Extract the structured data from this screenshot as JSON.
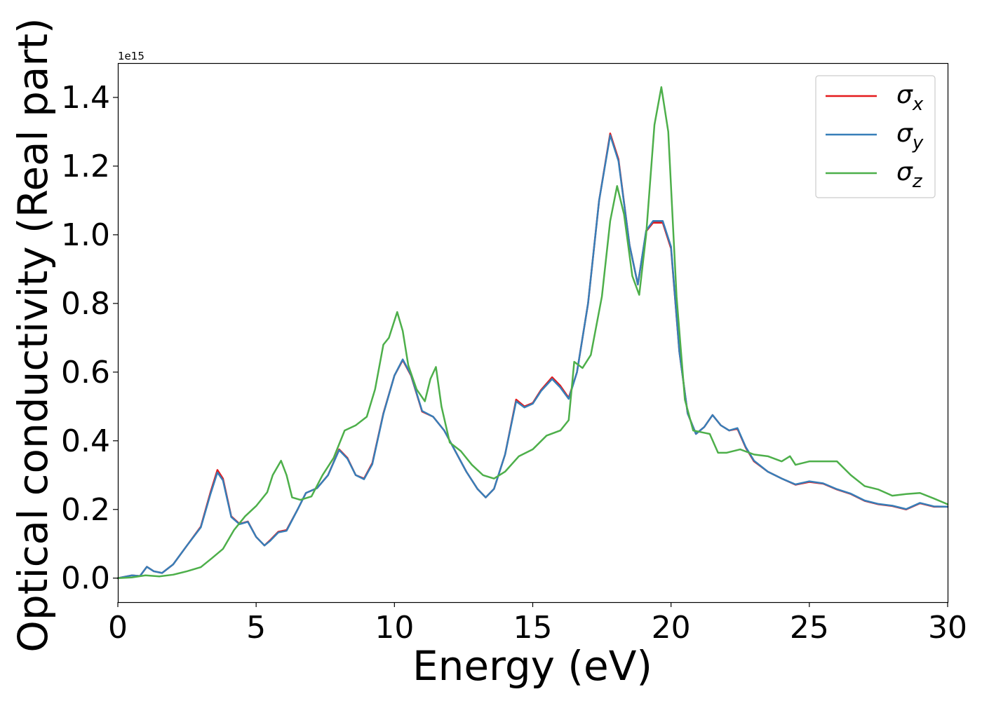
{
  "chart_data": {
    "type": "line",
    "xlabel": "Energy (eV)",
    "ylabel": "Optical conductivity (Real part)",
    "offset_text": "1e15",
    "xlim": [
      0,
      30
    ],
    "ylim": [
      -0.07,
      1.5
    ],
    "y_scale_factor": "1e15",
    "x_ticks": [
      0,
      5,
      10,
      15,
      20,
      25,
      30
    ],
    "x_tick_labels": [
      "0",
      "5",
      "10",
      "15",
      "20",
      "25",
      "30"
    ],
    "y_ticks": [
      0.0,
      0.2,
      0.4,
      0.6,
      0.8,
      1.0,
      1.2,
      1.4
    ],
    "y_tick_labels": [
      "0.0",
      "0.2",
      "0.4",
      "0.6",
      "0.8",
      "1.0",
      "1.2",
      "1.4"
    ],
    "grid": false,
    "legend_position": "top-right",
    "series": [
      {
        "name": "σx",
        "label_base": "σ",
        "label_sub": "x",
        "color": "#e41a1c",
        "x": [
          0,
          0.5,
          0.8,
          1.05,
          1.3,
          1.6,
          2.0,
          2.5,
          3.0,
          3.35,
          3.6,
          3.8,
          4.1,
          4.4,
          4.7,
          5.0,
          5.3,
          5.5,
          5.8,
          6.1,
          6.5,
          6.8,
          7.2,
          7.6,
          8.0,
          8.3,
          8.6,
          8.9,
          9.2,
          9.6,
          10.0,
          10.3,
          10.6,
          11.0,
          11.4,
          11.8,
          12.2,
          12.6,
          13.0,
          13.3,
          13.6,
          14.0,
          14.4,
          14.7,
          15.0,
          15.3,
          15.7,
          16.0,
          16.3,
          16.6,
          17.0,
          17.4,
          17.8,
          18.1,
          18.5,
          18.8,
          19.1,
          19.35,
          19.7,
          20.0,
          20.3,
          20.6,
          20.9,
          21.2,
          21.5,
          21.8,
          22.1,
          22.4,
          22.7,
          23.0,
          23.5,
          24.0,
          24.5,
          25.0,
          25.5,
          26.0,
          26.5,
          27.0,
          27.5,
          28.0,
          28.5,
          29.0,
          29.5,
          30.0
        ],
        "values": [
          0,
          0.008,
          0.006,
          0.033,
          0.02,
          0.015,
          0.04,
          0.095,
          0.15,
          0.25,
          0.315,
          0.29,
          0.18,
          0.158,
          0.165,
          0.12,
          0.095,
          0.11,
          0.135,
          0.14,
          0.2,
          0.248,
          0.262,
          0.3,
          0.375,
          0.35,
          0.3,
          0.29,
          0.335,
          0.48,
          0.59,
          0.635,
          0.59,
          0.485,
          0.47,
          0.43,
          0.37,
          0.31,
          0.26,
          0.235,
          0.26,
          0.36,
          0.52,
          0.5,
          0.51,
          0.548,
          0.585,
          0.56,
          0.525,
          0.6,
          0.8,
          1.1,
          1.295,
          1.22,
          0.97,
          0.855,
          1.01,
          1.035,
          1.035,
          0.96,
          0.66,
          0.48,
          0.42,
          0.44,
          0.475,
          0.445,
          0.43,
          0.435,
          0.38,
          0.34,
          0.31,
          0.29,
          0.272,
          0.28,
          0.275,
          0.258,
          0.245,
          0.225,
          0.215,
          0.21,
          0.2,
          0.218,
          0.208,
          0.208
        ]
      },
      {
        "name": "σy",
        "label_base": "σ",
        "label_sub": "y",
        "color": "#377eb8",
        "x": [
          0,
          0.5,
          0.8,
          1.05,
          1.3,
          1.6,
          2.0,
          2.5,
          3.0,
          3.35,
          3.6,
          3.8,
          4.1,
          4.4,
          4.7,
          5.0,
          5.3,
          5.5,
          5.8,
          6.1,
          6.5,
          6.8,
          7.2,
          7.6,
          8.0,
          8.3,
          8.6,
          8.9,
          9.2,
          9.6,
          10.0,
          10.3,
          10.6,
          11.0,
          11.4,
          11.8,
          12.2,
          12.6,
          13.0,
          13.3,
          13.6,
          14.0,
          14.4,
          14.7,
          15.0,
          15.3,
          15.7,
          16.0,
          16.3,
          16.6,
          17.0,
          17.4,
          17.8,
          18.1,
          18.5,
          18.8,
          19.1,
          19.35,
          19.7,
          20.0,
          20.3,
          20.6,
          20.9,
          21.2,
          21.5,
          21.8,
          22.1,
          22.4,
          22.7,
          23.0,
          23.5,
          24.0,
          24.5,
          25.0,
          25.5,
          26.0,
          26.5,
          27.0,
          27.5,
          28.0,
          28.5,
          29.0,
          29.5,
          30.0
        ],
        "values": [
          0,
          0.008,
          0.006,
          0.033,
          0.02,
          0.015,
          0.04,
          0.095,
          0.148,
          0.245,
          0.308,
          0.285,
          0.178,
          0.157,
          0.164,
          0.12,
          0.095,
          0.108,
          0.133,
          0.138,
          0.2,
          0.248,
          0.262,
          0.3,
          0.373,
          0.348,
          0.3,
          0.288,
          0.332,
          0.478,
          0.59,
          0.637,
          0.592,
          0.487,
          0.47,
          0.43,
          0.37,
          0.31,
          0.26,
          0.235,
          0.26,
          0.36,
          0.515,
          0.497,
          0.508,
          0.545,
          0.58,
          0.555,
          0.522,
          0.6,
          0.8,
          1.1,
          1.29,
          1.215,
          0.97,
          0.855,
          1.012,
          1.04,
          1.04,
          0.965,
          0.66,
          0.48,
          0.42,
          0.44,
          0.475,
          0.445,
          0.43,
          0.437,
          0.382,
          0.342,
          0.31,
          0.29,
          0.273,
          0.282,
          0.276,
          0.259,
          0.246,
          0.226,
          0.216,
          0.211,
          0.201,
          0.219,
          0.209,
          0.208
        ]
      },
      {
        "name": "σz",
        "label_base": "σ",
        "label_sub": "z",
        "color": "#4daf4a",
        "x": [
          0,
          0.5,
          1.0,
          1.5,
          2.0,
          2.5,
          3.0,
          3.4,
          3.8,
          4.2,
          4.6,
          5.0,
          5.4,
          5.6,
          5.9,
          6.1,
          6.3,
          6.6,
          7.0,
          7.4,
          7.8,
          8.2,
          8.6,
          9.0,
          9.3,
          9.6,
          9.8,
          10.1,
          10.3,
          10.5,
          10.8,
          11.1,
          11.3,
          11.5,
          11.7,
          12.0,
          12.4,
          12.8,
          13.2,
          13.6,
          14.0,
          14.5,
          15.0,
          15.5,
          16.0,
          16.3,
          16.5,
          16.8,
          17.1,
          17.5,
          17.8,
          18.05,
          18.3,
          18.6,
          18.85,
          19.1,
          19.4,
          19.65,
          19.9,
          20.2,
          20.5,
          20.8,
          21.1,
          21.4,
          21.7,
          22.0,
          22.5,
          23.0,
          23.5,
          24.0,
          24.3,
          24.5,
          25.0,
          25.5,
          26.0,
          26.5,
          27.0,
          27.5,
          28.0,
          28.5,
          29.0,
          29.5,
          30.0
        ],
        "values": [
          0,
          0.002,
          0.008,
          0.005,
          0.01,
          0.02,
          0.032,
          0.058,
          0.085,
          0.14,
          0.18,
          0.21,
          0.25,
          0.3,
          0.342,
          0.3,
          0.235,
          0.228,
          0.238,
          0.3,
          0.35,
          0.43,
          0.445,
          0.47,
          0.55,
          0.68,
          0.7,
          0.775,
          0.72,
          0.62,
          0.55,
          0.515,
          0.58,
          0.615,
          0.5,
          0.395,
          0.37,
          0.33,
          0.3,
          0.29,
          0.31,
          0.355,
          0.375,
          0.415,
          0.43,
          0.46,
          0.63,
          0.612,
          0.65,
          0.82,
          1.04,
          1.142,
          1.06,
          0.88,
          0.825,
          1.0,
          1.32,
          1.43,
          1.3,
          0.82,
          0.52,
          0.43,
          0.425,
          0.42,
          0.365,
          0.365,
          0.375,
          0.36,
          0.355,
          0.34,
          0.355,
          0.33,
          0.34,
          0.34,
          0.34,
          0.3,
          0.268,
          0.258,
          0.24,
          0.245,
          0.248,
          0.232,
          0.215
        ]
      }
    ]
  }
}
